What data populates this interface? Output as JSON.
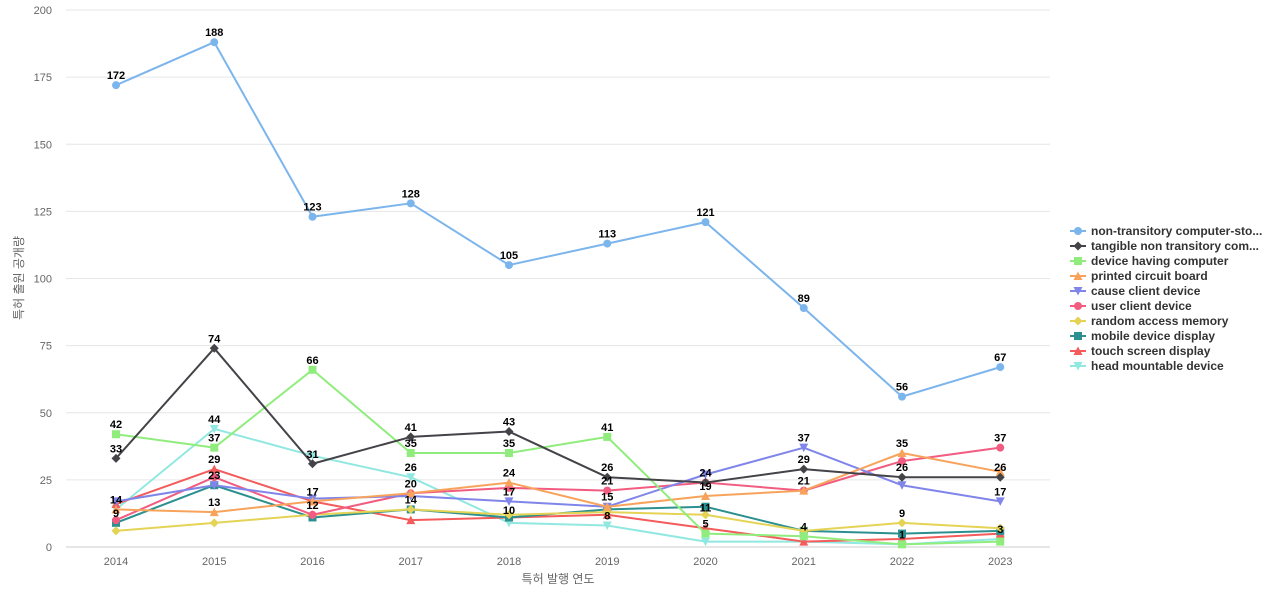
{
  "chart_data": {
    "type": "line",
    "x": [
      "2014",
      "2015",
      "2016",
      "2017",
      "2018",
      "2019",
      "2020",
      "2021",
      "2022",
      "2023"
    ],
    "xlabel": "특허 발행 연도",
    "ylabel": "특허 출원 공개량",
    "ylim": [
      0,
      200
    ],
    "yticks": [
      0,
      25,
      50,
      75,
      100,
      125,
      150,
      175,
      200
    ],
    "grid": "horizontal",
    "legend_position": "right",
    "series": [
      {
        "name": "non-transitory computer-sto...",
        "color": "#7cb5ec",
        "marker": "circle",
        "values": [
          172,
          188,
          123,
          128,
          105,
          113,
          121,
          89,
          56,
          67
        ]
      },
      {
        "name": "tangible non transitory com...",
        "color": "#434348",
        "marker": "diamond",
        "values": [
          33,
          74,
          31,
          41,
          43,
          26,
          24,
          29,
          26,
          26
        ]
      },
      {
        "name": "device having computer",
        "color": "#90ed7d",
        "marker": "square",
        "values": [
          42,
          37,
          66,
          35,
          35,
          41,
          5,
          4,
          1,
          2
        ]
      },
      {
        "name": "printed circuit board",
        "color": "#f7a35c",
        "marker": "triangle",
        "values": [
          14,
          13,
          17,
          20,
          24,
          15,
          19,
          21,
          35,
          28
        ]
      },
      {
        "name": "cause client device",
        "color": "#8085e9",
        "marker": "triangle-down",
        "values": [
          17,
          23,
          18,
          19,
          17,
          15,
          27,
          37,
          23,
          17
        ]
      },
      {
        "name": "user client device",
        "color": "#f15c80",
        "marker": "circle",
        "values": [
          10,
          26,
          12,
          20,
          22,
          21,
          24,
          21,
          32,
          37
        ]
      },
      {
        "name": "random access memory",
        "color": "#e4d354",
        "marker": "diamond",
        "values": [
          6,
          9,
          12,
          14,
          12,
          13,
          12,
          6,
          9,
          7
        ]
      },
      {
        "name": "mobile device display",
        "color": "#2b908f",
        "marker": "square",
        "values": [
          9,
          23,
          11,
          14,
          11,
          14,
          15,
          6,
          5,
          6
        ]
      },
      {
        "name": "touch screen display",
        "color": "#f45b5b",
        "marker": "triangle",
        "values": [
          16,
          29,
          17,
          10,
          11,
          12,
          7,
          2,
          3,
          5
        ]
      },
      {
        "name": "head mountable device",
        "color": "#91e8e1",
        "marker": "triangle-down",
        "values": [
          14,
          44,
          34,
          26,
          9,
          8,
          2,
          2,
          1,
          3
        ]
      }
    ],
    "data_labels": [
      {
        "x": "2014",
        "values": [
          172,
          42,
          33,
          14,
          9
        ]
      },
      {
        "x": "2015",
        "values": [
          188,
          74,
          44,
          37,
          29,
          23,
          13
        ]
      },
      {
        "x": "2016",
        "values": [
          123,
          66,
          31,
          17,
          12
        ]
      },
      {
        "x": "2017",
        "values": [
          128,
          41,
          35,
          26,
          20,
          14
        ]
      },
      {
        "x": "2018",
        "values": [
          105,
          43,
          35,
          24,
          17,
          10
        ]
      },
      {
        "x": "2019",
        "values": [
          113,
          41,
          26,
          21,
          15,
          8
        ]
      },
      {
        "x": "2020",
        "values": [
          121,
          24,
          19,
          11,
          5
        ]
      },
      {
        "x": "2021",
        "values": [
          89,
          37,
          29,
          21,
          4
        ]
      },
      {
        "x": "2022",
        "values": [
          56,
          35,
          26,
          9,
          1
        ]
      },
      {
        "x": "2023",
        "values": [
          67,
          37,
          26,
          17,
          3
        ]
      }
    ]
  }
}
